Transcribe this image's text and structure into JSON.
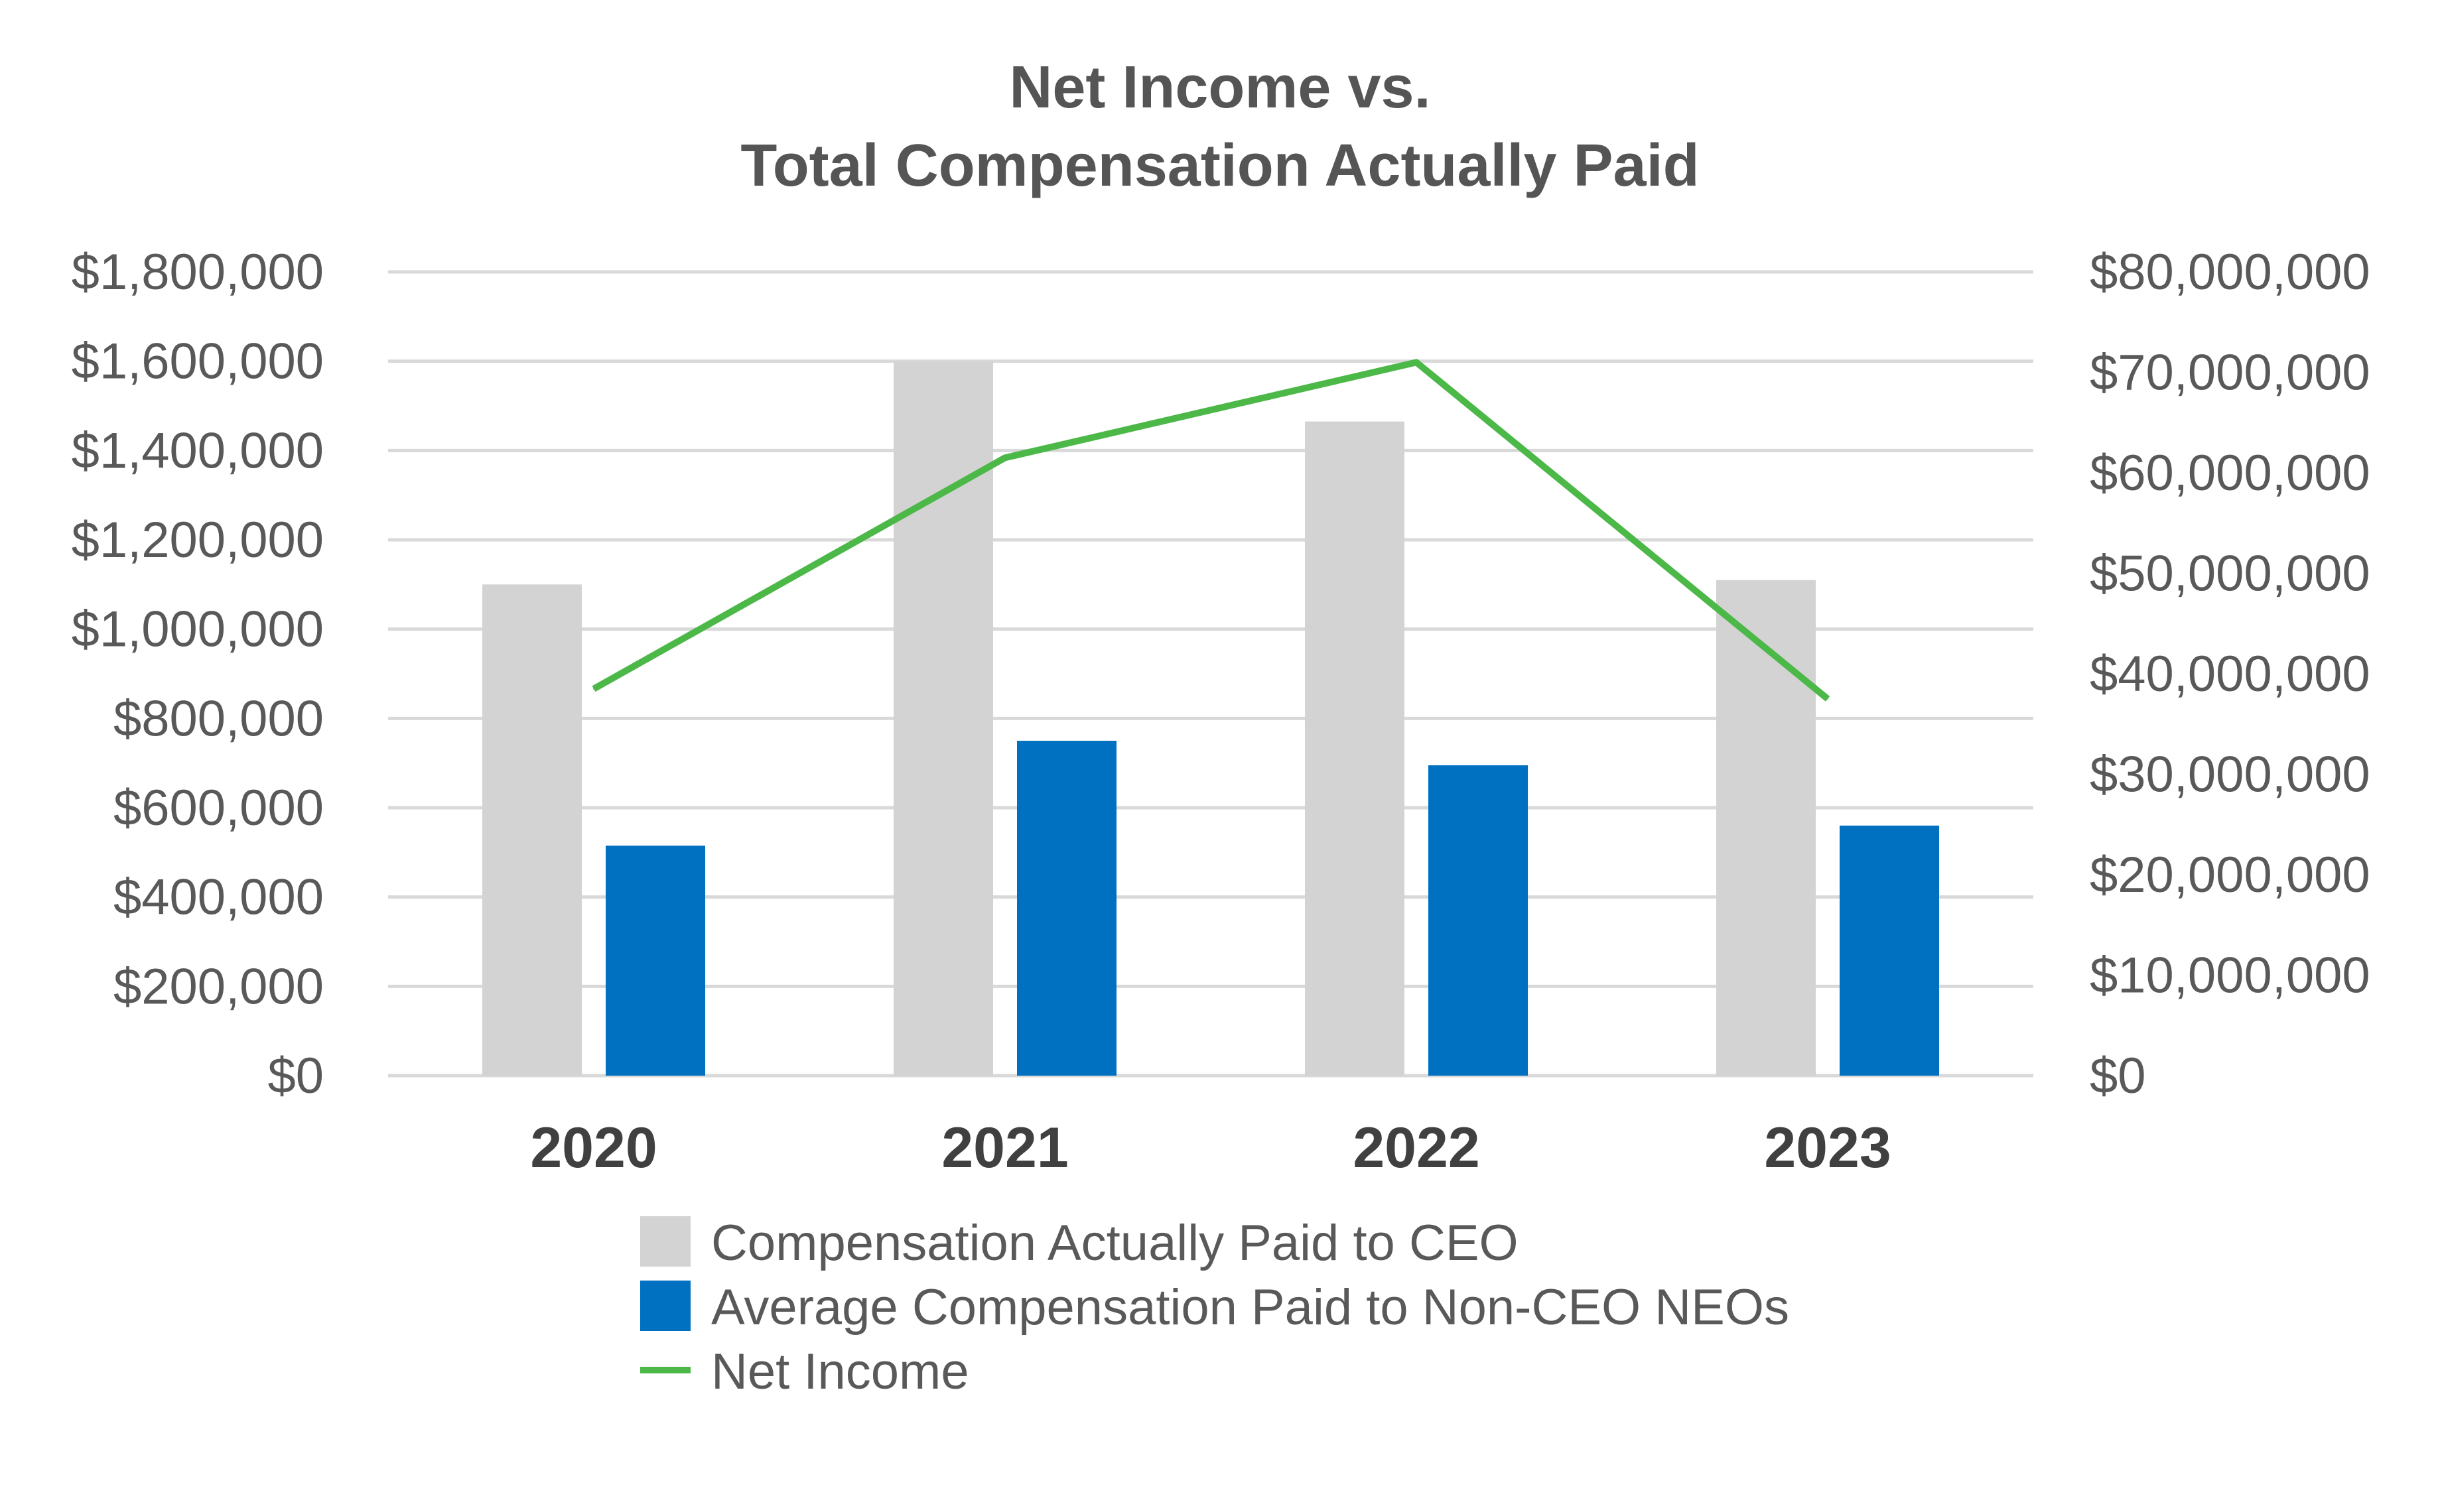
{
  "chart_data": {
    "type": "bar",
    "title_line1": "Net Income vs.",
    "title_line2": "Total Compensation Actually Paid",
    "categories": [
      "2020",
      "2021",
      "2022",
      "2023"
    ],
    "ylim_left": [
      0,
      1800000
    ],
    "yticks_left": [
      "$1,800,000",
      "$1,600,000",
      "$1,400,000",
      "$1,200,000",
      "$1,000,000",
      "$800,000",
      "$600,000",
      "$400,000",
      "$200,000",
      "$0"
    ],
    "ylim_right": [
      0,
      80000000
    ],
    "yticks_right": [
      "$80,000,000",
      "$70,000,000",
      "$60,000,000",
      "$50,000,000",
      "$40,000,000",
      "$30,000,000",
      "$20,000,000",
      "$10,000,000",
      "$0"
    ],
    "grid": true,
    "legend_position": "bottom",
    "series": [
      {
        "name": "Compensation Actually Paid to CEO",
        "type": "bar",
        "axis": "left",
        "color": "#d3d3d3",
        "values": [
          1100000,
          1600000,
          1465000,
          1110000
        ]
      },
      {
        "name": "Average Compensation Paid to Non-CEO NEOs",
        "type": "bar",
        "axis": "left",
        "color": "#0070c0",
        "values": [
          515000,
          750000,
          695000,
          560000
        ]
      },
      {
        "name": "Net Income",
        "type": "line",
        "axis": "right",
        "color": "#4cb848",
        "values": [
          38500000,
          61500000,
          71000000,
          37500000
        ]
      }
    ]
  }
}
